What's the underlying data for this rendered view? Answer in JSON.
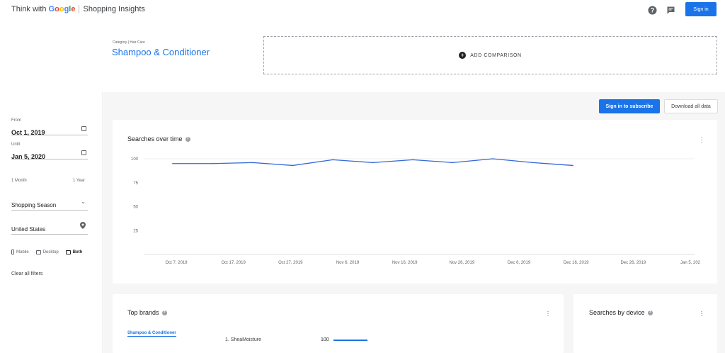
{
  "header": {
    "brand_prefix": "Think with",
    "brand_google": "Google",
    "product": "Shopping Insights",
    "help_icon": "help-circle-icon",
    "feedback_icon": "feedback-icon",
    "signin_label": "Sign in"
  },
  "comparison": {
    "category_label": "Category | Hair Care",
    "category_title": "Shampoo & Conditioner",
    "add_label": "ADD COMPARISON",
    "add_icon": "plus-circle-icon"
  },
  "sidebar": {
    "from_label": "From",
    "from_value": "Oct 1, 2019",
    "until_label": "Until",
    "until_value": "Jan 5, 2020",
    "range_min": "1 Month",
    "range_max": "1 Year",
    "season_value": "Shopping Season",
    "location_value": "United States",
    "devices": [
      {
        "label": "Mobile",
        "icon": "mobile-icon",
        "active": false
      },
      {
        "label": "Desktop",
        "icon": "desktop-icon",
        "active": false
      },
      {
        "label": "Both",
        "icon": "laptop-icon",
        "active": true
      }
    ],
    "clear_filters": "Clear all filters"
  },
  "actions": {
    "subscribe_label": "Sign in to subscribe",
    "download_label": "Download all data"
  },
  "searches_over_time": {
    "title": "Searches over time"
  },
  "chart_data": {
    "type": "line",
    "title": "Searches over time",
    "x": [
      "Oct 1, 2019",
      "Oct 8, 2019",
      "Oct 15, 2019",
      "Oct 22, 2019",
      "Oct 29, 2019",
      "Nov 5, 2019",
      "Nov 12, 2019",
      "Nov 19, 2019",
      "Nov 26, 2019",
      "Dec 3, 2019",
      "Dec 10, 2019",
      "Dec 17, 2019"
    ],
    "series": [
      {
        "values": [
          95,
          95,
          96,
          93,
          99,
          96,
          99,
          96,
          100,
          96,
          93,
          null
        ]
      }
    ],
    "x_tick_labels": [
      "Oct 7, 2019",
      "Oct 17, 2019",
      "Oct 27, 2019",
      "Nov 6, 2019",
      "Nov 16, 2019",
      "Nov 26, 2019",
      "Dec 6, 2019",
      "Dec 16, 2019",
      "Dec 26, 2019",
      "Jan 5, 202"
    ],
    "y_ticks": [
      100,
      75,
      50,
      25
    ],
    "ylim": [
      0,
      100
    ],
    "grid": true,
    "line_color": "#3367d6"
  },
  "top_brands": {
    "title": "Top brands",
    "tab_label": "Shampoo & Conditioner",
    "rows": [
      {
        "label": "1. SheaMoisture",
        "score": "100",
        "value": 100
      }
    ]
  },
  "searches_by_device": {
    "title": "Searches by device"
  },
  "colors": {
    "accent": "#1a73e8",
    "background": "#f6f6f6"
  }
}
